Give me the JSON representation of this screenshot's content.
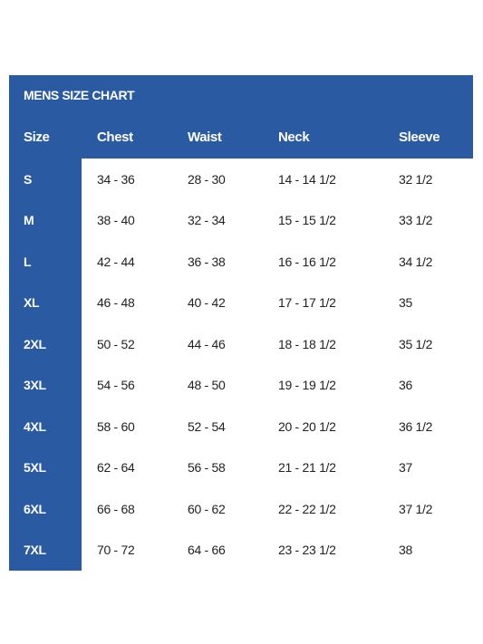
{
  "title": "MENS SIZE CHART",
  "columns": [
    "Size",
    "Chest",
    "Waist",
    "Neck",
    "Sleeve"
  ],
  "rows": [
    [
      "S",
      "34 - 36",
      "28 - 30",
      "14 - 14 1/2",
      "32 1/2"
    ],
    [
      "M",
      "38 - 40",
      "32 - 34",
      "15 - 15 1/2",
      "33 1/2"
    ],
    [
      "L",
      "42 - 44",
      "36 - 38",
      "16 - 16 1/2",
      "34 1/2"
    ],
    [
      "XL",
      "46 - 48",
      "40 - 42",
      "17 - 17 1/2",
      "35"
    ],
    [
      "2XL",
      "50 - 52",
      "44 - 46",
      "18 - 18 1/2",
      "35 1/2"
    ],
    [
      "3XL",
      "54 - 56",
      "48 - 50",
      "19 - 19 1/2",
      "36"
    ],
    [
      "4XL",
      "58 - 60",
      "52 - 54",
      "20 - 20 1/2",
      "36 1/2"
    ],
    [
      "5XL",
      "62 - 64",
      "56 - 58",
      "21 - 21 1/2",
      "37"
    ],
    [
      "6XL",
      "66 - 68",
      "60 - 62",
      "22 - 22 1/2",
      "37 1/2"
    ],
    [
      "7XL",
      "70 - 72",
      "64 - 66",
      "23 - 23 1/2",
      "38"
    ]
  ],
  "colors": {
    "header_blue": "#2a5aa2",
    "text_dark": "#222222",
    "text_light": "#ffffff"
  }
}
